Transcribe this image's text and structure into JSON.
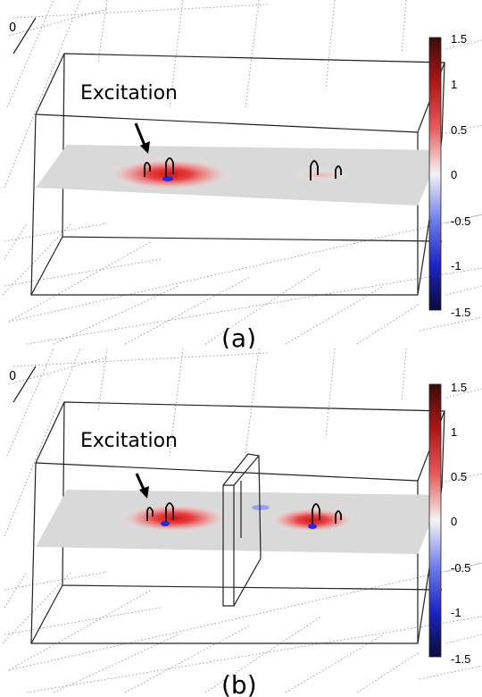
{
  "panels": [
    {
      "caption": "(a)",
      "annotation": "Excitation",
      "axis_corner_label": "0",
      "colorbar": {
        "ticks": [
          "1.5",
          "1",
          "0.5",
          "0",
          "-0.5",
          "-1",
          "-1.5"
        ],
        "colors": [
          "#3d0a0a",
          "#b01818",
          "#e85a5a",
          "#f4f4f4",
          "#6f7dea",
          "#1f25c8",
          "#0a0a3a"
        ]
      },
      "has_obstacle": false
    },
    {
      "caption": "(b)",
      "annotation": "Excitation",
      "axis_corner_label": "0",
      "colorbar": {
        "ticks": [
          "1.5",
          "1",
          "0.5",
          "0",
          "-0.5",
          "-1",
          "-1.5"
        ],
        "colors": [
          "#3d0a0a",
          "#b01818",
          "#e85a5a",
          "#f4f4f4",
          "#6f7dea",
          "#1f25c8",
          "#0a0a3a"
        ]
      },
      "has_obstacle": true
    }
  ]
}
